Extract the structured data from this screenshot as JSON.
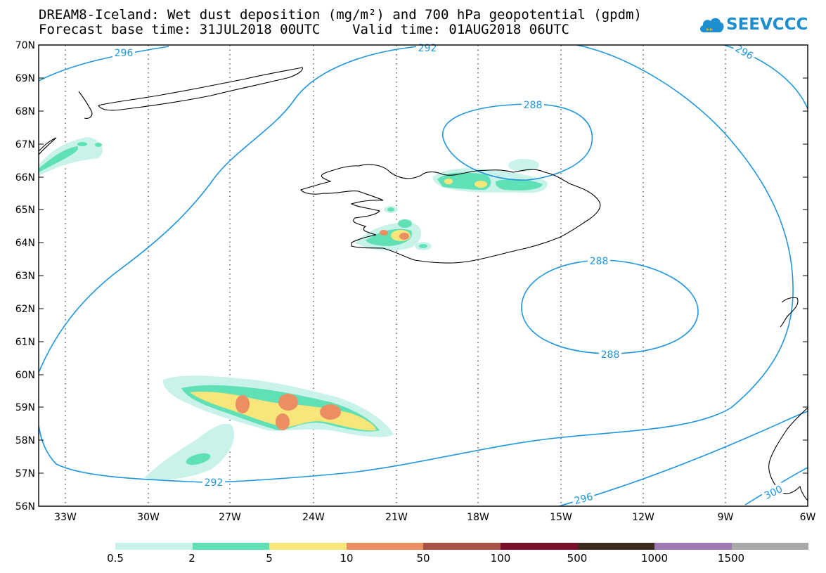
{
  "title": {
    "line1": "DREAM8-Iceland: Wet dust deposition (mg/m²) and 700 hPa geopotential (gpdm)",
    "line2": "Forecast base time: 31JUL2018 00UTC    Valid time: 01AUG2018 06UTC"
  },
  "logo": {
    "text": "SEEVCCC",
    "icon": "cloud-icon",
    "color": "#1d8fd0"
  },
  "axes": {
    "lat_labels": [
      "70N",
      "69N",
      "68N",
      "67N",
      "66N",
      "65N",
      "64N",
      "63N",
      "62N",
      "61N",
      "60N",
      "59N",
      "58N",
      "57N",
      "56N"
    ],
    "lon_labels": [
      "33W",
      "30W",
      "27W",
      "24W",
      "21W",
      "18W",
      "15W",
      "12W",
      "9W",
      "6W"
    ]
  },
  "contours": {
    "color": "#1e96e0",
    "labels": [
      "296",
      "292",
      "296",
      "288",
      "288",
      "288",
      "292",
      "296",
      "300"
    ]
  },
  "legend": {
    "colors": [
      "#c8f2ea",
      "#5fe0b5",
      "#f8e67a",
      "#eb8f63",
      "#a85247",
      "#7a0f2c",
      "#3a2b1f",
      "#9e7ab5",
      "#a8a8a8"
    ],
    "labels": [
      "0.5",
      "2",
      "5",
      "10",
      "50",
      "100",
      "500",
      "1000",
      "1500"
    ]
  },
  "chart_data": {
    "type": "heatmap",
    "title": "DREAM8-Iceland: Wet dust deposition (mg/m²) and 700 hPa geopotential (gpdm)",
    "lon_range": [
      -34.0,
      -6.0
    ],
    "lat_range": [
      56.0,
      70.0
    ],
    "grid": "dotted meridians every 3°",
    "contour_levels_gpdm": [
      288,
      292,
      296,
      300
    ],
    "deposition_classes_mg_m2": [
      0.5,
      2,
      5,
      10,
      50,
      100,
      500,
      1000,
      1500
    ]
  }
}
